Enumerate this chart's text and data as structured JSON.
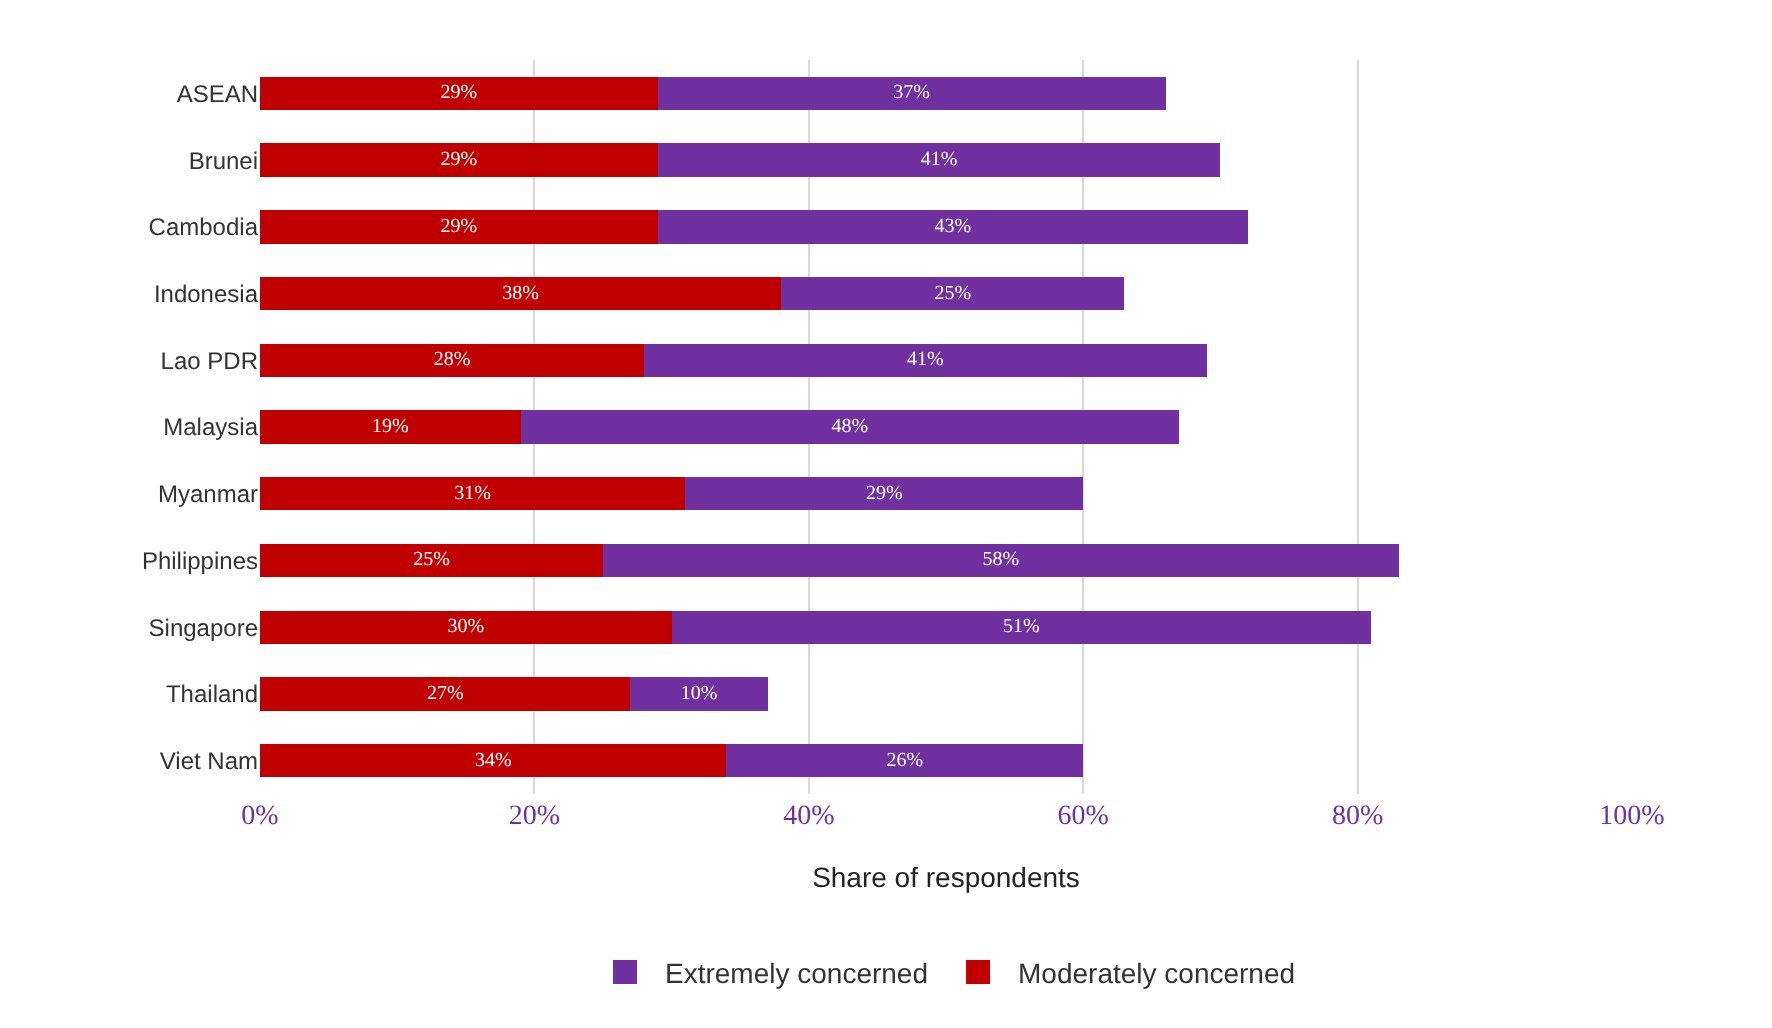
{
  "chart_data": {
    "type": "bar",
    "orientation": "horizontal",
    "stacked": true,
    "xlabel": "Share of respondents",
    "categories": [
      "ASEAN",
      "Brunei",
      "Cambodia",
      "Indonesia",
      "Lao PDR",
      "Malaysia",
      "Myanmar",
      "Philippines",
      "Singapore",
      "Thailand",
      "Viet Nam"
    ],
    "series": [
      {
        "name": "Moderately concerned",
        "color": "#c00000",
        "values": [
          29,
          29,
          29,
          38,
          28,
          19,
          31,
          25,
          30,
          27,
          34
        ],
        "value_labels": [
          "29%",
          "29%",
          "29%",
          "38%",
          "28%",
          "19%",
          "31%",
          "25%",
          "30%",
          "27%",
          "34%"
        ]
      },
      {
        "name": "Extremely concerned",
        "color": "#7030a0",
        "values": [
          37,
          41,
          43,
          25,
          41,
          48,
          29,
          58,
          51,
          10,
          26
        ],
        "value_labels": [
          "37%",
          "41%",
          "43%",
          "25%",
          "41%",
          "48%",
          "29%",
          "58%",
          "51%",
          "10%",
          "26%"
        ]
      }
    ],
    "xlim": [
      0,
      100
    ],
    "xticks": [
      {
        "value": 0,
        "label": "0%"
      },
      {
        "value": 20,
        "label": "20%"
      },
      {
        "value": 40,
        "label": "40%"
      },
      {
        "value": 60,
        "label": "60%"
      },
      {
        "value": 80,
        "label": "80%"
      },
      {
        "value": 100,
        "label": "100%"
      }
    ],
    "grid": "x",
    "legend": "bottom"
  }
}
